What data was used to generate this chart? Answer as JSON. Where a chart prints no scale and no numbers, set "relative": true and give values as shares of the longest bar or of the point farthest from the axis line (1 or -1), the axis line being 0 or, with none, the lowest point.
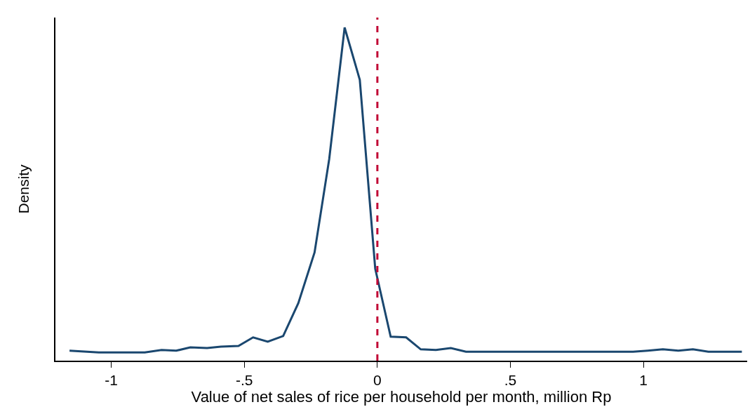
{
  "chart_data": {
    "type": "line",
    "xlabel": "Value of net sales of rice per household per month, million Rp",
    "ylabel": "Density",
    "relative": true,
    "x": [
      -1.157,
      -1.047,
      -0.874,
      -0.811,
      -0.756,
      -0.703,
      -0.64,
      -0.588,
      -0.522,
      -0.467,
      -0.412,
      -0.354,
      -0.297,
      -0.236,
      -0.181,
      -0.123,
      -0.066,
      -0.008,
      0.05,
      0.108,
      0.163,
      0.22,
      0.276,
      0.333,
      0.961,
      1.016,
      1.073,
      1.131,
      1.186,
      1.244,
      1.37
    ],
    "series": [
      {
        "color": "#1a476f",
        "values": [
          0.03,
          0.025,
          0.025,
          0.032,
          0.03,
          0.04,
          0.038,
          0.042,
          0.044,
          0.07,
          0.057,
          0.074,
          0.173,
          0.325,
          0.605,
          1.0,
          0.843,
          0.276,
          0.072,
          0.07,
          0.034,
          0.032,
          0.038,
          0.027,
          0.027,
          0.03,
          0.034,
          0.03,
          0.034,
          0.027,
          0.027
        ]
      }
    ],
    "xlim": [
      -1.21,
      1.39
    ],
    "xticks": [
      {
        "value": -1,
        "label": "-1"
      },
      {
        "value": -0.5,
        "label": "-.5"
      },
      0,
      {
        "value": 0.5,
        "label": ".5"
      },
      1
    ],
    "ref_lines": [
      {
        "axis": "x",
        "value": 0,
        "color": "#c10534",
        "line_style": "dashed"
      }
    ],
    "grid": false,
    "marker": "none",
    "line_style": "solid"
  }
}
